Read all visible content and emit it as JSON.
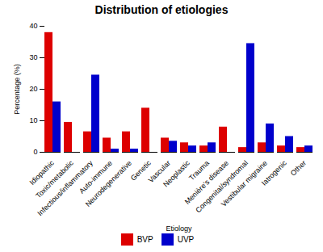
{
  "chart_data": {
    "type": "bar",
    "title": "Distribution of etiologies",
    "xlabel": "Etiology",
    "ylabel": "Percentage (%)",
    "categories": [
      "Idiopathic",
      "Toxic/metabolic",
      "Infectious/inflammatory",
      "Auto-immune",
      "Neurodegenerative",
      "Genetic",
      "Vascular",
      "Neoplastic",
      "Trauma",
      "Menière's disease",
      "Congenital/syndromal",
      "Vestibular migraine",
      "Iatrogenic",
      "Other"
    ],
    "series": [
      {
        "name": "BVP",
        "color": "#dd0000",
        "values": [
          38,
          9.5,
          6.5,
          4.5,
          6.5,
          14,
          4.5,
          3,
          2,
          8,
          1.5,
          3,
          2,
          1.5
        ]
      },
      {
        "name": "UVP",
        "color": "#0000cc",
        "values": [
          16,
          0,
          24.5,
          1,
          1,
          0,
          3.5,
          2,
          3,
          0,
          34.5,
          9,
          5,
          2
        ]
      }
    ],
    "ylim": [
      0,
      40
    ],
    "yticks": [
      0,
      10,
      20,
      30,
      40
    ],
    "grid": false,
    "legend": "bottom"
  }
}
